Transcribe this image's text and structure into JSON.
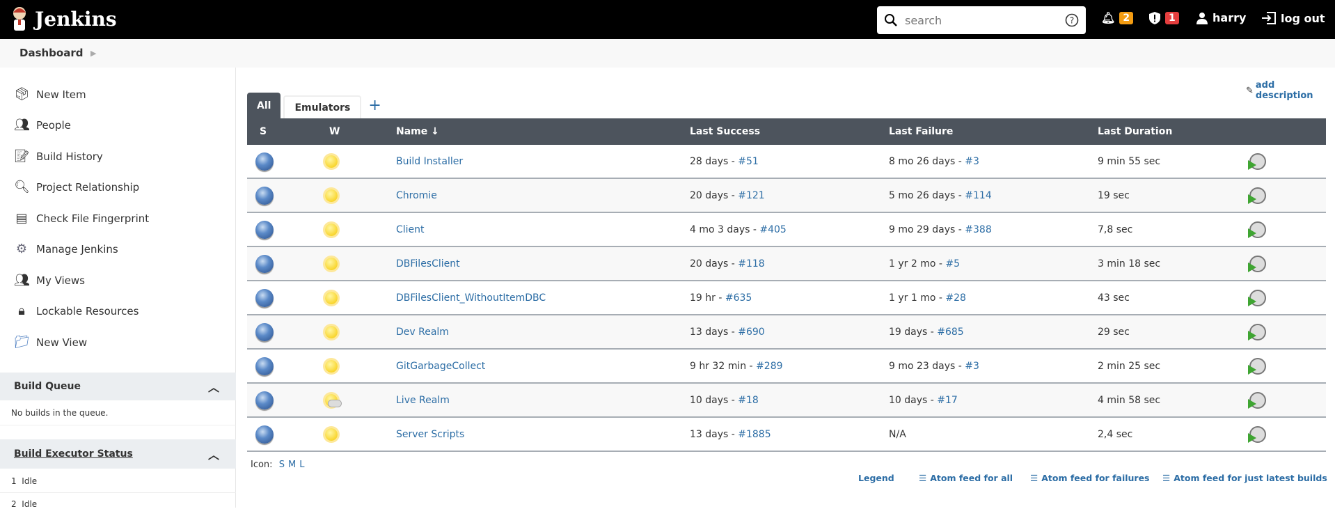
{
  "header": {
    "app_title": "Jenkins",
    "search_placeholder": "search",
    "notifications_count": "2",
    "security_count": "1",
    "user": "harry",
    "logout": "log out",
    "colors": {
      "notif": "#f39c12",
      "security": "#e53e3e"
    }
  },
  "breadcrumb": {
    "items": [
      "Dashboard"
    ]
  },
  "sidebar": {
    "items": [
      {
        "label": "New Item",
        "icon": "new-item-icon"
      },
      {
        "label": "People",
        "icon": "people-icon"
      },
      {
        "label": "Build History",
        "icon": "notepad-icon"
      },
      {
        "label": "Project Relationship",
        "icon": "magnifier-icon"
      },
      {
        "label": "Check File Fingerprint",
        "icon": "fingerprint-icon"
      },
      {
        "label": "Manage Jenkins",
        "icon": "gear-icon"
      },
      {
        "label": "My Views",
        "icon": "people-icon"
      },
      {
        "label": "Lockable Resources",
        "icon": "lock-resource-icon"
      },
      {
        "label": "New View",
        "icon": "folder-icon"
      }
    ],
    "build_queue": {
      "title": "Build Queue",
      "empty": "No builds in the queue."
    },
    "executors": {
      "title": "Build Executor Status",
      "items": [
        {
          "num": "1",
          "status": "Idle"
        },
        {
          "num": "2",
          "status": "Idle"
        }
      ]
    }
  },
  "main": {
    "add_description": "add description",
    "tabs": [
      {
        "label": "All",
        "active": true
      },
      {
        "label": "Emulators",
        "active": false
      }
    ],
    "add_tab": "+",
    "columns": {
      "s": "S",
      "w": "W",
      "name": "Name ↓",
      "last_success": "Last Success",
      "last_failure": "Last Failure",
      "last_duration": "Last Duration"
    },
    "jobs": [
      {
        "name": "Build Installer",
        "weather": "sunny",
        "ls": "28 days - ",
        "ls_build": "#51",
        "lf": "8 mo 26 days - ",
        "lf_build": "#3",
        "dur": "9 min 55 sec"
      },
      {
        "name": "Chromie",
        "weather": "sunny",
        "ls": "20 days - ",
        "ls_build": "#121",
        "lf": "5 mo 26 days - ",
        "lf_build": "#114",
        "dur": "19 sec"
      },
      {
        "name": "Client",
        "weather": "sunny",
        "ls": "4 mo 3 days - ",
        "ls_build": "#405",
        "lf": "9 mo 29 days - ",
        "lf_build": "#388",
        "dur": "7,8 sec"
      },
      {
        "name": "DBFilesClient",
        "weather": "sunny",
        "ls": "20 days - ",
        "ls_build": "#118",
        "lf": "1 yr 2 mo - ",
        "lf_build": "#5",
        "dur": "3 min 18 sec"
      },
      {
        "name": "DBFilesClient_WithoutItemDBC",
        "weather": "sunny",
        "ls": "19 hr - ",
        "ls_build": "#635",
        "lf": "1 yr 1 mo - ",
        "lf_build": "#28",
        "dur": "43 sec"
      },
      {
        "name": "Dev Realm",
        "weather": "sunny",
        "ls": "13 days - ",
        "ls_build": "#690",
        "lf": "19 days - ",
        "lf_build": "#685",
        "dur": "29 sec"
      },
      {
        "name": "GitGarbageCollect",
        "weather": "sunny",
        "ls": "9 hr 32 min - ",
        "ls_build": "#289",
        "lf": "9 mo 23 days - ",
        "lf_build": "#3",
        "dur": "2 min 25 sec"
      },
      {
        "name": "Live Realm",
        "weather": "partly-cloudy",
        "ls": "10 days - ",
        "ls_build": "#18",
        "lf": "10 days - ",
        "lf_build": "#17",
        "dur": "4 min 58 sec"
      },
      {
        "name": "Server Scripts",
        "weather": "sunny",
        "ls": "13 days - ",
        "ls_build": "#1885",
        "lf": "N/A",
        "lf_build": "",
        "dur": "2,4 sec"
      }
    ],
    "icon_label": "Icon:",
    "icon_sizes": [
      "S",
      "M",
      "L"
    ],
    "footer": {
      "legend": "Legend",
      "feed_all": "Atom feed for all",
      "feed_failures": "Atom feed for failures",
      "feed_latest": "Atom feed for just latest builds"
    }
  }
}
